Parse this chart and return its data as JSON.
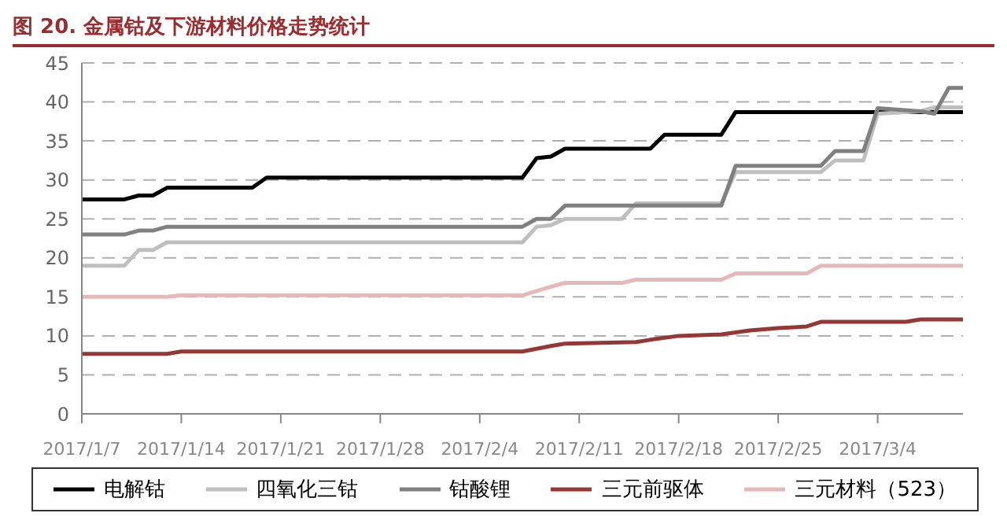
{
  "chart_data": {
    "type": "line",
    "title": "图 20. 金属钴及下游材料价格走势统计",
    "xlim": [
      "2017-01-07",
      "2017-03-10"
    ],
    "xticks": [
      {
        "value": "2017-01-07",
        "label": "2017/1/7"
      },
      {
        "value": "2017-01-14",
        "label": "2017/1/14"
      },
      {
        "value": "2017-01-21",
        "label": "2017/1/21"
      },
      {
        "value": "2017-01-28",
        "label": "2017/1/28"
      },
      {
        "value": "2017-02-04",
        "label": "2017/2/4"
      },
      {
        "value": "2017-02-11",
        "label": "2017/2/11"
      },
      {
        "value": "2017-02-18",
        "label": "2017/2/18"
      },
      {
        "value": "2017-02-25",
        "label": "2017/2/25"
      },
      {
        "value": "2017-03-04",
        "label": "2017/3/4"
      }
    ],
    "ylim": [
      0,
      45
    ],
    "yticks": [
      0,
      5,
      10,
      15,
      20,
      25,
      30,
      35,
      40,
      45
    ],
    "grid": "y",
    "legend": "bottom",
    "marker": "none",
    "line_style": "solid",
    "series": [
      {
        "name": "电解钴",
        "color": "#000000",
        "x": [
          "2017-01-07",
          "2017-01-10",
          "2017-01-11",
          "2017-01-12",
          "2017-01-13",
          "2017-01-19",
          "2017-01-20",
          "2017-02-07",
          "2017-02-08",
          "2017-02-09",
          "2017-02-10",
          "2017-02-16",
          "2017-02-17",
          "2017-02-21",
          "2017-02-22",
          "2017-03-10"
        ],
        "values": [
          27.5,
          27.5,
          28,
          28,
          29,
          29,
          30.3,
          30.3,
          32.8,
          33,
          34,
          34,
          35.8,
          35.8,
          38.7,
          38.7
        ]
      },
      {
        "name": "四氧化三钴",
        "color": "#bfbfbf",
        "x": [
          "2017-01-07",
          "2017-01-10",
          "2017-01-11",
          "2017-01-12",
          "2017-01-13",
          "2017-02-07",
          "2017-02-08",
          "2017-02-09",
          "2017-02-10",
          "2017-02-14",
          "2017-02-15",
          "2017-02-21",
          "2017-02-22",
          "2017-02-28",
          "2017-03-01",
          "2017-03-03",
          "2017-03-04",
          "2017-03-07",
          "2017-03-08",
          "2017-03-10"
        ],
        "values": [
          19,
          19,
          21,
          21,
          22,
          22,
          24,
          24.2,
          25,
          25,
          27,
          27,
          31,
          31,
          32.5,
          32.5,
          38.5,
          38.8,
          39.3,
          39.3
        ]
      },
      {
        "name": "钴酸锂",
        "color": "#808080",
        "x": [
          "2017-01-07",
          "2017-01-10",
          "2017-01-11",
          "2017-01-12",
          "2017-01-13",
          "2017-02-07",
          "2017-02-08",
          "2017-02-09",
          "2017-02-10",
          "2017-02-21",
          "2017-02-22",
          "2017-02-28",
          "2017-03-01",
          "2017-03-03",
          "2017-03-04",
          "2017-03-07",
          "2017-03-08",
          "2017-03-09",
          "2017-03-10"
        ],
        "values": [
          23,
          23,
          23.5,
          23.5,
          24,
          24,
          25,
          25,
          26.7,
          26.7,
          31.8,
          31.8,
          33.7,
          33.7,
          39.2,
          38.8,
          38.5,
          41.8,
          41.8
        ]
      },
      {
        "name": "三元前驱体",
        "color": "#953735",
        "x": [
          "2017-01-07",
          "2017-01-13",
          "2017-01-14",
          "2017-02-07",
          "2017-02-09",
          "2017-02-10",
          "2017-02-15",
          "2017-02-16",
          "2017-02-18",
          "2017-02-21",
          "2017-02-23",
          "2017-02-25",
          "2017-02-27",
          "2017-02-28",
          "2017-03-06",
          "2017-03-07",
          "2017-03-10"
        ],
        "values": [
          7.7,
          7.7,
          8,
          8,
          8.7,
          9,
          9.2,
          9.5,
          10,
          10.2,
          10.7,
          11,
          11.2,
          11.8,
          11.8,
          12.1,
          12.1
        ]
      },
      {
        "name": "三元材料（523）",
        "color": "#e6b9b8",
        "x": [
          "2017-01-07",
          "2017-01-13",
          "2017-01-14",
          "2017-02-07",
          "2017-02-09",
          "2017-02-10",
          "2017-02-14",
          "2017-02-15",
          "2017-02-21",
          "2017-02-22",
          "2017-02-27",
          "2017-02-28",
          "2017-03-10"
        ],
        "values": [
          15,
          15,
          15.2,
          15.2,
          16.3,
          16.8,
          16.8,
          17.2,
          17.2,
          18,
          18,
          19,
          19
        ]
      }
    ]
  }
}
